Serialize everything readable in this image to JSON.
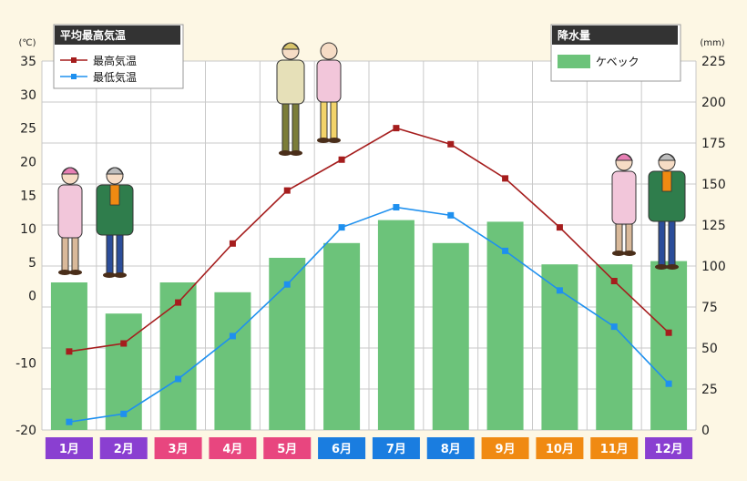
{
  "chart_data": {
    "type": "bar+line",
    "categories": [
      "1月",
      "2月",
      "3月",
      "4月",
      "5月",
      "6月",
      "7月",
      "8月",
      "9月",
      "10月",
      "11月",
      "12月"
    ],
    "category_colors": [
      "#8a3fd1",
      "#8a3fd1",
      "#e8467f",
      "#e8467f",
      "#e8467f",
      "#1a7de0",
      "#1a7de0",
      "#1a7de0",
      "#f08a12",
      "#f08a12",
      "#f08a12",
      "#8a3fd1"
    ],
    "left_axis": {
      "unit": "(℃)",
      "range": [
        -20,
        35
      ],
      "ticks": [
        -20,
        -10,
        0,
        5,
        10,
        15,
        20,
        25,
        30,
        35
      ]
    },
    "right_axis": {
      "unit": "(mm)",
      "range": [
        0,
        225
      ],
      "ticks": [
        0,
        25,
        50,
        75,
        100,
        125,
        150,
        175,
        200,
        225
      ]
    },
    "precipitation": {
      "name": "ケベック",
      "values": [
        90,
        71,
        90,
        84,
        105,
        114,
        128,
        114,
        127,
        101,
        101,
        103
      ],
      "color": "#6cc37a"
    },
    "lines": [
      {
        "name": "最高気温",
        "color": "#a51d1d",
        "values": [
          -8.3,
          -7.1,
          -1.0,
          7.8,
          15.7,
          20.3,
          25.0,
          22.6,
          17.5,
          10.2,
          2.2,
          -5.5
        ]
      },
      {
        "name": "最低気温",
        "color": "#1e90ef",
        "values": [
          -18.8,
          -17.6,
          -12.4,
          -6.0,
          1.7,
          10.2,
          13.2,
          12.0,
          6.7,
          0.8,
          -4.6,
          -13.1
        ]
      }
    ],
    "legend_temp": {
      "title": "平均最高気温"
    },
    "legend_precip": {
      "title": "降水量"
    }
  },
  "colors": {
    "legend_header_bg": "#333333",
    "grid": "#c9c9c9",
    "plot_bg": "#ffffff"
  },
  "illustrations": {
    "winter_left": "winter-couple",
    "summer": "summer-couple",
    "winter_right": "winter-couple"
  }
}
